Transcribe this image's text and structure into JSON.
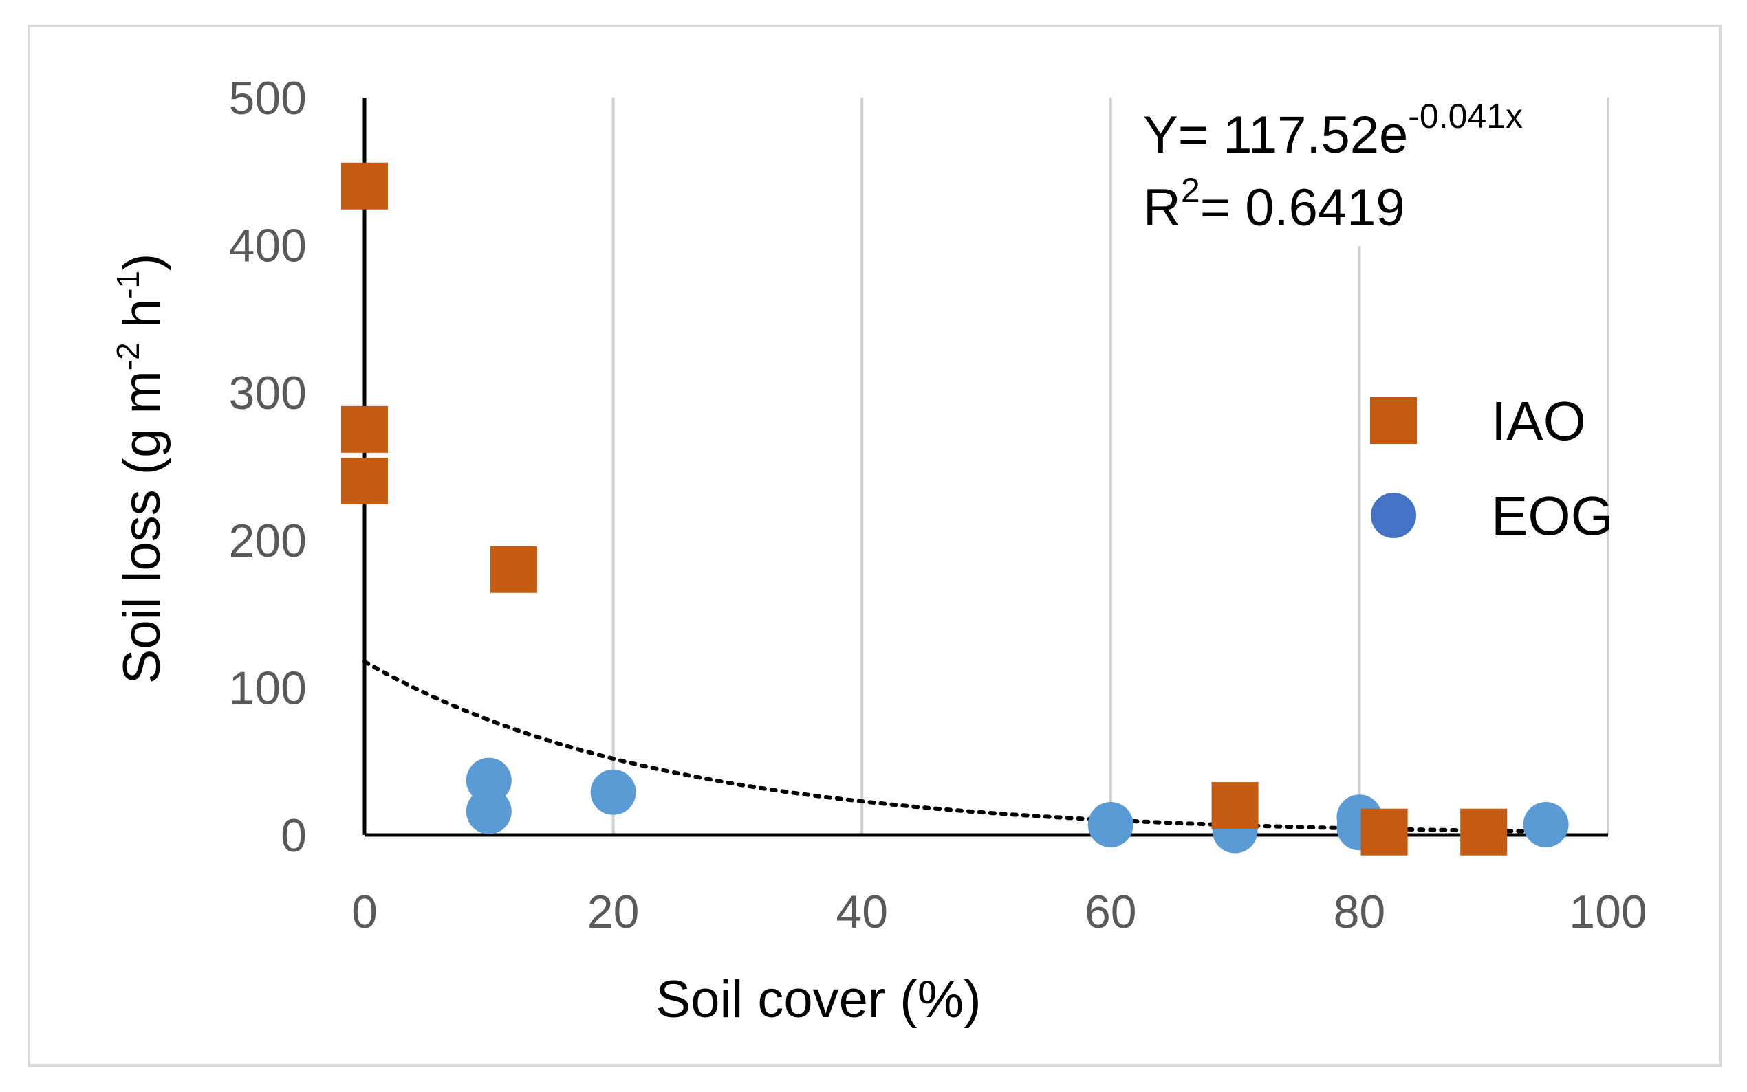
{
  "chart_data": {
    "type": "scatter",
    "xlabel": "Soil cover (%)",
    "ylabel": {
      "prefix": "Soil loss (g m",
      "sup1": "-2",
      "middle": " h",
      "sup2": "-1",
      "suffix": ")"
    },
    "xlim": [
      0,
      100
    ],
    "ylim": [
      0,
      500
    ],
    "x_ticks": [
      "0",
      "20",
      "40",
      "60",
      "80",
      "100"
    ],
    "y_ticks": [
      "0",
      "100",
      "200",
      "300",
      "400",
      "500"
    ],
    "x_tick_values": [
      0,
      20,
      40,
      60,
      80,
      100
    ],
    "y_tick_values": [
      0,
      100,
      200,
      300,
      400,
      500
    ],
    "grid": "vertical",
    "legend_position": "right",
    "series": [
      {
        "name": "IAO",
        "marker": "square",
        "color": "#C55A11",
        "points": [
          [
            0,
            440
          ],
          [
            0,
            275
          ],
          [
            0,
            240
          ],
          [
            12,
            180
          ],
          [
            70,
            20
          ],
          [
            82,
            2
          ],
          [
            90,
            2
          ]
        ]
      },
      {
        "name": "EOG",
        "marker": "circle",
        "color": "#5B9BD5",
        "legend_color": "#4472C4",
        "points": [
          [
            10,
            37
          ],
          [
            10,
            16
          ],
          [
            20,
            29
          ],
          [
            60,
            7
          ],
          [
            70,
            3
          ],
          [
            80,
            12
          ],
          [
            80,
            5
          ],
          [
            95,
            7
          ]
        ]
      }
    ],
    "trendline": {
      "type": "exponential",
      "a": 117.52,
      "b": -0.041,
      "style": "dotted",
      "color": "#000000"
    },
    "equation": {
      "line1_base": "Y= 117.52e",
      "line1_sup": "-0.041x",
      "line2_base": "R",
      "line2_sup": "2",
      "line2_rest": "= 0.6419"
    }
  }
}
